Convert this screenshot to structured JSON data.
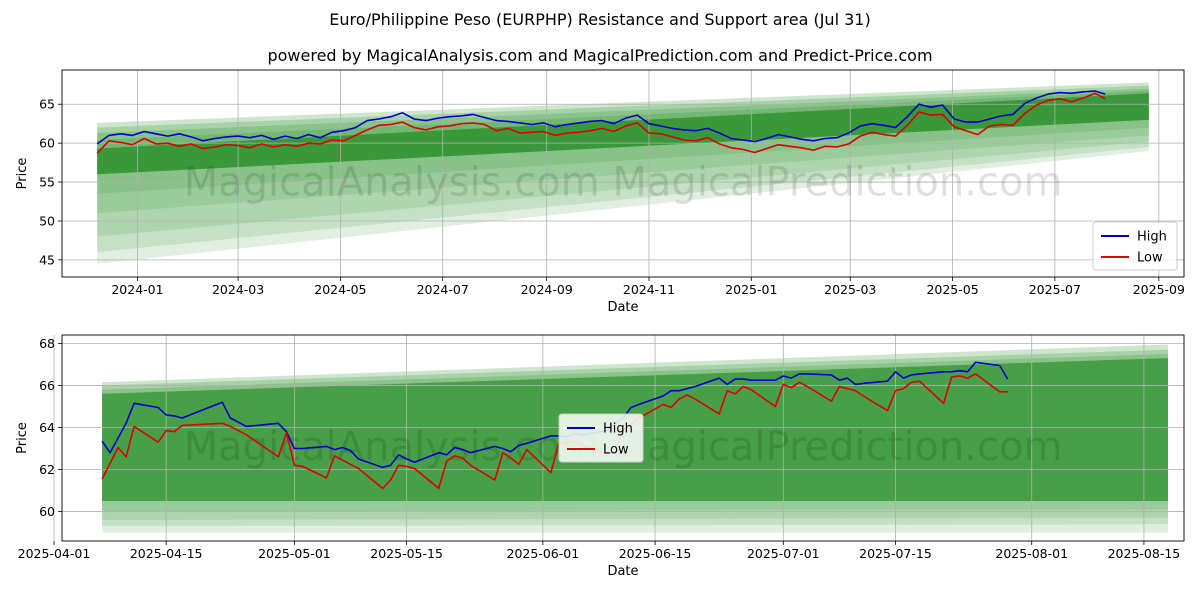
{
  "title": "Euro/Philippine Peso (EURPHP) Resistance and Support area (Jul 31)",
  "subtitle": "powered by MagicalAnalysis.com and MagicalPrediction.com and Predict-Price.com",
  "watermark": "MagicalAnalysis.com    MagicalPrediction.com",
  "colors": {
    "high": "#0000cc",
    "low": "#dd0000",
    "band": "#228b22",
    "grid": "#b0b0b0"
  },
  "chart_data": [
    {
      "type": "line",
      "name": "full-period",
      "xlabel": "Date",
      "ylabel": "Price",
      "xlim": [
        "2023-11-17",
        "2025-09-16"
      ],
      "ylim": [
        42.8,
        69.4
      ],
      "x_ticks": [
        "2024-01",
        "2024-03",
        "2024-05",
        "2024-07",
        "2024-09",
        "2024-11",
        "2025-01",
        "2025-03",
        "2025-05",
        "2025-07",
        "2025-09"
      ],
      "y_ticks": [
        45,
        50,
        55,
        60,
        65
      ],
      "grid": true,
      "legend": {
        "position": "lower-right",
        "entries": [
          "High",
          "Low"
        ]
      },
      "band": {
        "x_start": "2023-12-08",
        "x_end": "2025-08-26",
        "upper_start": [
          62.6,
          62.0,
          61.3,
          60.4,
          59.3
        ],
        "upper_end": [
          67.8,
          67.4,
          67.0,
          66.7,
          66.4
        ],
        "lower_start": [
          44.5,
          46.0,
          48.0,
          51.0,
          53.5,
          56.0
        ],
        "lower_end": [
          59.0,
          59.5,
          60.2,
          61.0,
          62.0,
          63.0
        ]
      },
      "series": [
        {
          "name": "High",
          "dates": [
            "2023-12-08",
            "2023-12-15",
            "2023-12-22",
            "2023-12-29",
            "2024-01-05",
            "2024-01-12",
            "2024-01-19",
            "2024-01-26",
            "2024-02-02",
            "2024-02-09",
            "2024-02-16",
            "2024-02-23",
            "2024-03-01",
            "2024-03-08",
            "2024-03-15",
            "2024-03-22",
            "2024-03-29",
            "2024-04-05",
            "2024-04-12",
            "2024-04-19",
            "2024-04-26",
            "2024-05-03",
            "2024-05-10",
            "2024-05-17",
            "2024-05-24",
            "2024-05-31",
            "2024-06-07",
            "2024-06-14",
            "2024-06-21",
            "2024-06-28",
            "2024-07-05",
            "2024-07-12",
            "2024-07-19",
            "2024-07-26",
            "2024-08-02",
            "2024-08-09",
            "2024-08-16",
            "2024-08-23",
            "2024-08-30",
            "2024-09-06",
            "2024-09-13",
            "2024-09-20",
            "2024-09-27",
            "2024-10-04",
            "2024-10-11",
            "2024-10-18",
            "2024-10-25",
            "2024-11-01",
            "2024-11-08",
            "2024-11-15",
            "2024-11-22",
            "2024-11-29",
            "2024-12-06",
            "2024-12-13",
            "2024-12-20",
            "2024-12-27",
            "2025-01-03",
            "2025-01-10",
            "2025-01-17",
            "2025-01-24",
            "2025-01-31",
            "2025-02-07",
            "2025-02-14",
            "2025-02-21",
            "2025-02-28",
            "2025-03-07",
            "2025-03-14",
            "2025-03-21",
            "2025-03-28",
            "2025-04-04",
            "2025-04-11",
            "2025-04-18",
            "2025-04-25",
            "2025-05-02",
            "2025-05-09",
            "2025-05-16",
            "2025-05-23",
            "2025-05-30",
            "2025-06-06",
            "2025-06-13",
            "2025-06-20",
            "2025-06-27",
            "2025-07-04",
            "2025-07-11",
            "2025-07-18",
            "2025-07-25",
            "2025-07-31"
          ],
          "values": [
            59.9,
            61.0,
            61.2,
            61.0,
            61.5,
            61.2,
            60.9,
            61.2,
            60.8,
            60.3,
            60.6,
            60.8,
            60.9,
            60.7,
            61.0,
            60.5,
            60.9,
            60.6,
            61.1,
            60.7,
            61.4,
            61.6,
            62.0,
            62.9,
            63.1,
            63.4,
            63.9,
            63.1,
            62.9,
            63.2,
            63.4,
            63.5,
            63.7,
            63.3,
            62.9,
            62.8,
            62.6,
            62.4,
            62.6,
            62.1,
            62.4,
            62.6,
            62.8,
            62.9,
            62.5,
            63.2,
            63.6,
            62.5,
            62.2,
            61.9,
            61.7,
            61.6,
            61.9,
            61.3,
            60.6,
            60.4,
            60.2,
            60.6,
            61.1,
            60.8,
            60.5,
            60.3,
            60.6,
            60.7,
            61.3,
            62.2,
            62.5,
            62.3,
            62.0,
            63.4,
            65.0,
            64.6,
            64.9,
            63.1,
            62.7,
            62.7,
            63.1,
            63.5,
            63.7,
            65.1,
            65.8,
            66.3,
            66.5,
            66.4,
            66.6,
            66.7,
            66.3
          ]
        },
        {
          "name": "Low",
          "dates": [
            "2023-12-08",
            "2023-12-15",
            "2023-12-22",
            "2023-12-29",
            "2024-01-05",
            "2024-01-12",
            "2024-01-19",
            "2024-01-26",
            "2024-02-02",
            "2024-02-09",
            "2024-02-16",
            "2024-02-23",
            "2024-03-01",
            "2024-03-08",
            "2024-03-15",
            "2024-03-22",
            "2024-03-29",
            "2024-04-05",
            "2024-04-12",
            "2024-04-19",
            "2024-04-26",
            "2024-05-03",
            "2024-05-10",
            "2024-05-17",
            "2024-05-24",
            "2024-05-31",
            "2024-06-07",
            "2024-06-14",
            "2024-06-21",
            "2024-06-28",
            "2024-07-05",
            "2024-07-12",
            "2024-07-19",
            "2024-07-26",
            "2024-08-02",
            "2024-08-09",
            "2024-08-16",
            "2024-08-23",
            "2024-08-30",
            "2024-09-06",
            "2024-09-13",
            "2024-09-20",
            "2024-09-27",
            "2024-10-04",
            "2024-10-11",
            "2024-10-18",
            "2024-10-25",
            "2024-11-01",
            "2024-11-08",
            "2024-11-15",
            "2024-11-22",
            "2024-11-29",
            "2024-12-06",
            "2024-12-13",
            "2024-12-20",
            "2024-12-27",
            "2025-01-03",
            "2025-01-10",
            "2025-01-17",
            "2025-01-24",
            "2025-01-31",
            "2025-02-07",
            "2025-02-14",
            "2025-02-21",
            "2025-02-28",
            "2025-03-07",
            "2025-03-14",
            "2025-03-21",
            "2025-03-28",
            "2025-04-04",
            "2025-04-11",
            "2025-04-18",
            "2025-04-25",
            "2025-05-02",
            "2025-05-09",
            "2025-05-16",
            "2025-05-23",
            "2025-05-30",
            "2025-06-06",
            "2025-06-13",
            "2025-06-20",
            "2025-06-27",
            "2025-07-04",
            "2025-07-11",
            "2025-07-18",
            "2025-07-25",
            "2025-07-31"
          ],
          "values": [
            58.7,
            60.3,
            60.1,
            59.8,
            60.6,
            59.9,
            60.0,
            59.6,
            59.9,
            59.3,
            59.5,
            59.8,
            59.7,
            59.4,
            59.9,
            59.5,
            59.8,
            59.6,
            60.0,
            59.9,
            60.4,
            60.3,
            61.0,
            61.7,
            62.3,
            62.4,
            62.7,
            62.0,
            61.7,
            62.1,
            62.2,
            62.5,
            62.6,
            62.4,
            61.6,
            61.9,
            61.3,
            61.4,
            61.5,
            61.0,
            61.3,
            61.4,
            61.6,
            61.9,
            61.5,
            62.2,
            62.6,
            61.3,
            61.2,
            60.8,
            60.4,
            60.3,
            60.7,
            59.9,
            59.4,
            59.2,
            58.8,
            59.3,
            59.8,
            59.6,
            59.4,
            59.1,
            59.6,
            59.5,
            59.9,
            60.9,
            61.4,
            61.1,
            60.9,
            62.3,
            64.0,
            63.6,
            63.7,
            62.1,
            61.6,
            61.1,
            62.2,
            62.4,
            62.3,
            63.8,
            64.9,
            65.5,
            65.7,
            65.3,
            65.8,
            66.4,
            65.7
          ]
        }
      ]
    },
    {
      "type": "line",
      "name": "zoomed",
      "xlabel": "Date",
      "ylabel": "Price",
      "xlim": [
        "2025-04-02",
        "2025-08-20"
      ],
      "ylim": [
        58.6,
        68.4
      ],
      "x_ticks": [
        "2025-04-01",
        "2025-04-15",
        "2025-05-01",
        "2025-05-15",
        "2025-06-01",
        "2025-06-15",
        "2025-07-01",
        "2025-07-15",
        "2025-08-01",
        "2025-08-15"
      ],
      "y_ticks": [
        60,
        62,
        64,
        66,
        68
      ],
      "grid": true,
      "legend": {
        "position": "center",
        "entries": [
          "High",
          "Low"
        ]
      },
      "band": {
        "x_start": "2025-04-07",
        "x_end": "2025-08-18",
        "upper_start": [
          66.15,
          66.0,
          65.8,
          65.6
        ],
        "upper_end": [
          67.95,
          67.7,
          67.5,
          67.3
        ],
        "lower_start": [
          59.0,
          59.3,
          59.6,
          60.0,
          60.5
        ],
        "lower_end": [
          59.0,
          59.4,
          59.7,
          60.1,
          60.5
        ]
      },
      "series": [
        {
          "name": "High",
          "dates": [
            "2025-04-07",
            "2025-04-08",
            "2025-04-09",
            "2025-04-10",
            "2025-04-11",
            "2025-04-14",
            "2025-04-15",
            "2025-04-16",
            "2025-04-17",
            "2025-04-22",
            "2025-04-23",
            "2025-04-24",
            "2025-04-25",
            "2025-04-29",
            "2025-04-30",
            "2025-05-01",
            "2025-05-02",
            "2025-05-05",
            "2025-05-06",
            "2025-05-07",
            "2025-05-08",
            "2025-05-09",
            "2025-05-12",
            "2025-05-13",
            "2025-05-14",
            "2025-05-15",
            "2025-05-16",
            "2025-05-19",
            "2025-05-20",
            "2025-05-21",
            "2025-05-22",
            "2025-05-23",
            "2025-05-26",
            "2025-05-27",
            "2025-05-28",
            "2025-05-29",
            "2025-05-30",
            "2025-06-02",
            "2025-06-03",
            "2025-06-04",
            "2025-06-05",
            "2025-06-06",
            "2025-06-09",
            "2025-06-10",
            "2025-06-11",
            "2025-06-12",
            "2025-06-13",
            "2025-06-16",
            "2025-06-17",
            "2025-06-18",
            "2025-06-19",
            "2025-06-20",
            "2025-06-23",
            "2025-06-24",
            "2025-06-25",
            "2025-06-26",
            "2025-06-27",
            "2025-06-30",
            "2025-07-01",
            "2025-07-02",
            "2025-07-03",
            "2025-07-04",
            "2025-07-07",
            "2025-07-08",
            "2025-07-09",
            "2025-07-10",
            "2025-07-11",
            "2025-07-14",
            "2025-07-15",
            "2025-07-16",
            "2025-07-17",
            "2025-07-18",
            "2025-07-21",
            "2025-07-22",
            "2025-07-23",
            "2025-07-24",
            "2025-07-25",
            "2025-07-28",
            "2025-07-29"
          ],
          "values": [
            63.35,
            62.8,
            63.5,
            64.2,
            65.15,
            64.95,
            64.6,
            64.55,
            64.45,
            65.2,
            64.45,
            64.25,
            64.05,
            64.2,
            63.8,
            63.0,
            63.0,
            63.1,
            62.95,
            63.05,
            62.9,
            62.5,
            62.1,
            62.2,
            62.7,
            62.5,
            62.35,
            62.8,
            62.7,
            63.05,
            62.95,
            62.8,
            63.1,
            63.0,
            62.85,
            63.15,
            63.25,
            63.6,
            63.6,
            63.55,
            63.7,
            63.65,
            63.85,
            64.2,
            64.45,
            64.95,
            65.1,
            65.5,
            65.75,
            65.75,
            65.85,
            65.95,
            66.35,
            66.05,
            66.3,
            66.3,
            66.25,
            66.25,
            66.45,
            66.35,
            66.55,
            66.55,
            66.5,
            66.25,
            66.35,
            66.05,
            66.1,
            66.2,
            66.65,
            66.35,
            66.5,
            66.55,
            66.65,
            66.65,
            66.7,
            66.65,
            67.1,
            66.95,
            66.3
          ]
        },
        {
          "name": "Low",
          "dates": [
            "2025-04-07",
            "2025-04-08",
            "2025-04-09",
            "2025-04-10",
            "2025-04-11",
            "2025-04-14",
            "2025-04-15",
            "2025-04-16",
            "2025-04-17",
            "2025-04-22",
            "2025-04-23",
            "2025-04-24",
            "2025-04-25",
            "2025-04-29",
            "2025-04-30",
            "2025-05-01",
            "2025-05-02",
            "2025-05-05",
            "2025-05-06",
            "2025-05-07",
            "2025-05-08",
            "2025-05-09",
            "2025-05-12",
            "2025-05-13",
            "2025-05-14",
            "2025-05-15",
            "2025-05-16",
            "2025-05-19",
            "2025-05-20",
            "2025-05-21",
            "2025-05-22",
            "2025-05-23",
            "2025-05-26",
            "2025-05-27",
            "2025-05-28",
            "2025-05-29",
            "2025-05-30",
            "2025-06-02",
            "2025-06-03",
            "2025-06-04",
            "2025-06-05",
            "2025-06-06",
            "2025-06-09",
            "2025-06-10",
            "2025-06-11",
            "2025-06-12",
            "2025-06-13",
            "2025-06-16",
            "2025-06-17",
            "2025-06-18",
            "2025-06-19",
            "2025-06-20",
            "2025-06-23",
            "2025-06-24",
            "2025-06-25",
            "2025-06-26",
            "2025-06-27",
            "2025-06-30",
            "2025-07-01",
            "2025-07-02",
            "2025-07-03",
            "2025-07-04",
            "2025-07-07",
            "2025-07-08",
            "2025-07-09",
            "2025-07-10",
            "2025-07-11",
            "2025-07-14",
            "2025-07-15",
            "2025-07-16",
            "2025-07-17",
            "2025-07-18",
            "2025-07-21",
            "2025-07-22",
            "2025-07-23",
            "2025-07-24",
            "2025-07-25",
            "2025-07-28",
            "2025-07-29"
          ],
          "values": [
            61.55,
            62.3,
            63.05,
            62.6,
            64.05,
            63.3,
            63.85,
            63.8,
            64.1,
            64.2,
            64.05,
            63.85,
            63.65,
            62.6,
            63.75,
            62.2,
            62.15,
            61.6,
            62.65,
            62.45,
            62.25,
            62.05,
            61.1,
            61.5,
            62.2,
            62.15,
            62.05,
            61.1,
            62.4,
            62.65,
            62.55,
            62.2,
            61.5,
            62.8,
            62.55,
            62.25,
            62.95,
            61.85,
            63.25,
            63.3,
            63.35,
            63.1,
            62.75,
            62.8,
            63.85,
            64.15,
            64.45,
            65.1,
            64.95,
            65.35,
            65.55,
            65.35,
            64.65,
            65.75,
            65.6,
            65.95,
            65.8,
            65.0,
            66.05,
            65.9,
            66.15,
            65.95,
            65.25,
            65.95,
            65.85,
            65.75,
            65.5,
            64.8,
            65.75,
            65.85,
            66.15,
            66.2,
            65.15,
            66.4,
            66.45,
            66.35,
            66.55,
            65.7,
            65.7
          ]
        }
      ]
    }
  ]
}
